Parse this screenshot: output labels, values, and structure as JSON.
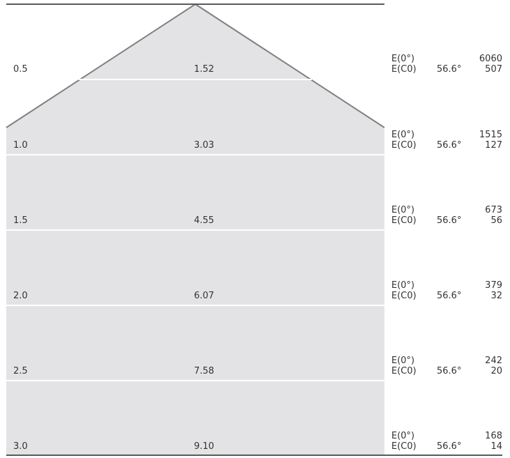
{
  "colors": {
    "cone_fill": "#e3e3e5",
    "cone_stroke": "#808080",
    "frame_stroke": "#595959",
    "row_separator": "#ffffff",
    "text": "#333333"
  },
  "rows": [
    {
      "distance": "0.5",
      "diameter": "1.52",
      "e0_label": "E(0°)",
      "e0_value": "6060",
      "ec0_label": "E(C0)",
      "ec0_angle": "56.6°",
      "ec0_value": "507"
    },
    {
      "distance": "1.0",
      "diameter": "3.03",
      "e0_label": "E(0°)",
      "e0_value": "1515",
      "ec0_label": "E(C0)",
      "ec0_angle": "56.6°",
      "ec0_value": "127"
    },
    {
      "distance": "1.5",
      "diameter": "4.55",
      "e0_label": "E(0°)",
      "e0_value": "673",
      "ec0_label": "E(C0)",
      "ec0_angle": "56.6°",
      "ec0_value": "56"
    },
    {
      "distance": "2.0",
      "diameter": "6.07",
      "e0_label": "E(0°)",
      "e0_value": "379",
      "ec0_label": "E(C0)",
      "ec0_angle": "56.6°",
      "ec0_value": "32"
    },
    {
      "distance": "2.5",
      "diameter": "7.58",
      "e0_label": "E(0°)",
      "e0_value": "242",
      "ec0_label": "E(C0)",
      "ec0_angle": "56.6°",
      "ec0_value": "20"
    },
    {
      "distance": "3.0",
      "diameter": "9.10",
      "e0_label": "E(0°)",
      "e0_value": "168",
      "ec0_label": "E(C0)",
      "ec0_angle": "56.6°",
      "ec0_value": "14"
    }
  ]
}
